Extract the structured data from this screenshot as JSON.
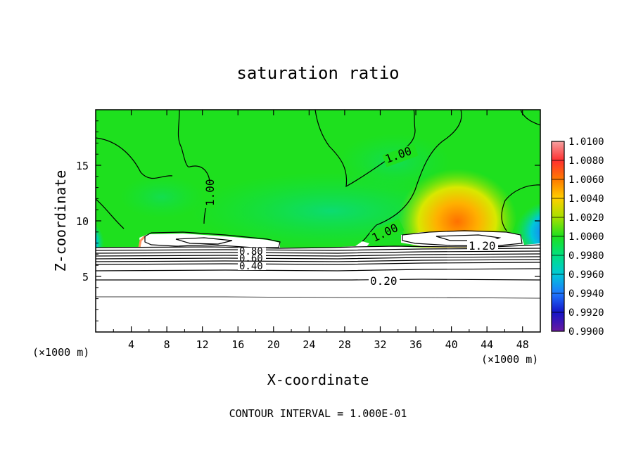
{
  "chart_data": {
    "type": "heatmap",
    "title": "saturation ratio",
    "xlabel": "X-coordinate",
    "ylabel": "Z-coordinate",
    "x_unit_left": "(×1000 m)",
    "x_unit_right": "(×1000 m)",
    "xlim": [
      0,
      50
    ],
    "ylim": [
      0,
      20
    ],
    "x_ticks": [
      "4",
      "8",
      "12",
      "16",
      "20",
      "24",
      "28",
      "32",
      "36",
      "40",
      "44",
      "48"
    ],
    "x_tick_values": [
      4,
      8,
      12,
      16,
      20,
      24,
      28,
      32,
      36,
      40,
      44,
      48
    ],
    "y_ticks": [
      "5",
      "10",
      "15"
    ],
    "y_tick_values": [
      5,
      10,
      15
    ],
    "footer": "CONTOUR INTERVAL = 1.000E-01",
    "colorbar": {
      "labels": [
        "1.0100",
        "1.0080",
        "1.0060",
        "1.0040",
        "1.0020",
        "1.0000",
        "0.9980",
        "0.9960",
        "0.9940",
        "0.9920",
        "0.9900"
      ],
      "colors_top_to_bottom": [
        "#f4a0a0",
        "#ff3030",
        "#ff7a00",
        "#ffd000",
        "#a6e000",
        "#1ee01e",
        "#00e080",
        "#00c8d8",
        "#1e78ff",
        "#1414c8",
        "#6a1aa0"
      ]
    },
    "contour_labels": [
      {
        "text": "1.00",
        "x": 13.5,
        "z": 12.0
      },
      {
        "text": "1.00",
        "x": 34.0,
        "z": 15.5
      },
      {
        "text": "1.00",
        "x": 32.5,
        "z": 9.2
      },
      {
        "text": "1.20",
        "x": 43.0,
        "z": 7.8
      },
      {
        "text": "0.80",
        "x": 17.0,
        "z": 7.2
      },
      {
        "text": "0.60",
        "x": 17.0,
        "z": 6.8
      },
      {
        "text": "0.40",
        "x": 17.0,
        "z": 6.1
      },
      {
        "text": "0.20",
        "x": 32.5,
        "z": 4.6
      }
    ],
    "below_cloud_contours_z": [
      3.2,
      4.8,
      5.6,
      6.1,
      6.5,
      6.8,
      7.0,
      7.2,
      7.4
    ]
  }
}
